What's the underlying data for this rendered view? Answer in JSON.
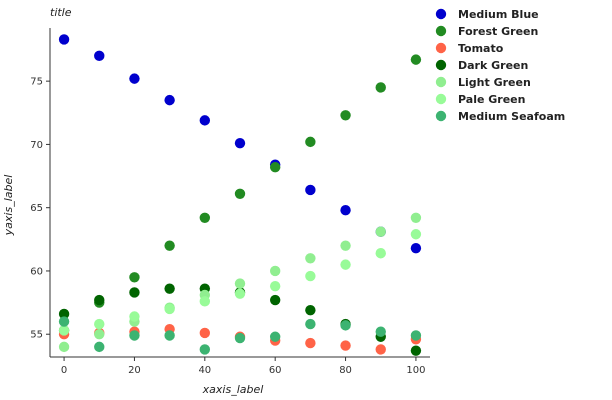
{
  "chart_data": {
    "type": "scatter",
    "title": "title",
    "xlabel": "xaxis_label",
    "ylabel": "yaxis_label",
    "xlim": [
      -4,
      104
    ],
    "ylim": [
      53.2,
      79.2
    ],
    "xticks": [
      0,
      20,
      40,
      60,
      80,
      100
    ],
    "yticks": [
      55,
      60,
      65,
      70,
      75
    ],
    "grid": false,
    "legend_position": "right",
    "series": [
      {
        "name": "Medium Blue",
        "color": "#0000cd",
        "x": [
          0,
          10,
          20,
          30,
          40,
          50,
          60,
          70,
          80,
          90,
          100
        ],
        "y": [
          78.3,
          77.0,
          75.2,
          73.5,
          71.9,
          70.1,
          68.4,
          66.4,
          64.8,
          63.1,
          61.8
        ]
      },
      {
        "name": "Forest Green",
        "color": "#228b22",
        "x": [
          0,
          10,
          20,
          30,
          40,
          50,
          60,
          70,
          80,
          90,
          100
        ],
        "y": [
          55.3,
          57.5,
          59.5,
          62.0,
          64.2,
          66.1,
          68.2,
          70.2,
          72.3,
          74.5,
          76.7
        ]
      },
      {
        "name": "Tomato",
        "color": "#ff6347",
        "x": [
          0,
          10,
          20,
          30,
          40,
          50,
          60,
          70,
          80,
          90,
          100
        ],
        "y": [
          55.0,
          55.1,
          55.2,
          55.4,
          55.1,
          54.8,
          54.5,
          54.3,
          54.1,
          53.8,
          54.6
        ]
      },
      {
        "name": "Dark Green",
        "color": "#006400",
        "x": [
          0,
          10,
          20,
          30,
          40,
          50,
          60,
          70,
          80,
          90,
          100
        ],
        "y": [
          56.6,
          57.7,
          58.3,
          58.6,
          58.6,
          58.3,
          57.7,
          56.9,
          55.8,
          54.8,
          53.7
        ]
      },
      {
        "name": "Light Green",
        "color": "#90ee90",
        "x": [
          0,
          10,
          20,
          30,
          40,
          50,
          60,
          70,
          80,
          90,
          100
        ],
        "y": [
          54.0,
          55.0,
          56.0,
          57.1,
          58.1,
          59.0,
          60.0,
          61.0,
          62.0,
          63.1,
          64.2
        ]
      },
      {
        "name": "Pale Green",
        "color": "#98fb98",
        "x": [
          0,
          10,
          20,
          30,
          40,
          50,
          60,
          70,
          80,
          90,
          100
        ],
        "y": [
          55.3,
          55.8,
          56.4,
          57.0,
          57.6,
          58.2,
          58.8,
          59.6,
          60.5,
          61.4,
          62.9
        ]
      },
      {
        "name": "Medium Seafoam",
        "color": "#3cb371",
        "x": [
          0,
          10,
          20,
          30,
          40,
          50,
          60,
          70,
          80,
          90,
          100
        ],
        "y": [
          56.0,
          54.0,
          54.9,
          54.9,
          53.8,
          54.7,
          54.8,
          55.8,
          55.7,
          55.2,
          54.9
        ]
      }
    ]
  }
}
